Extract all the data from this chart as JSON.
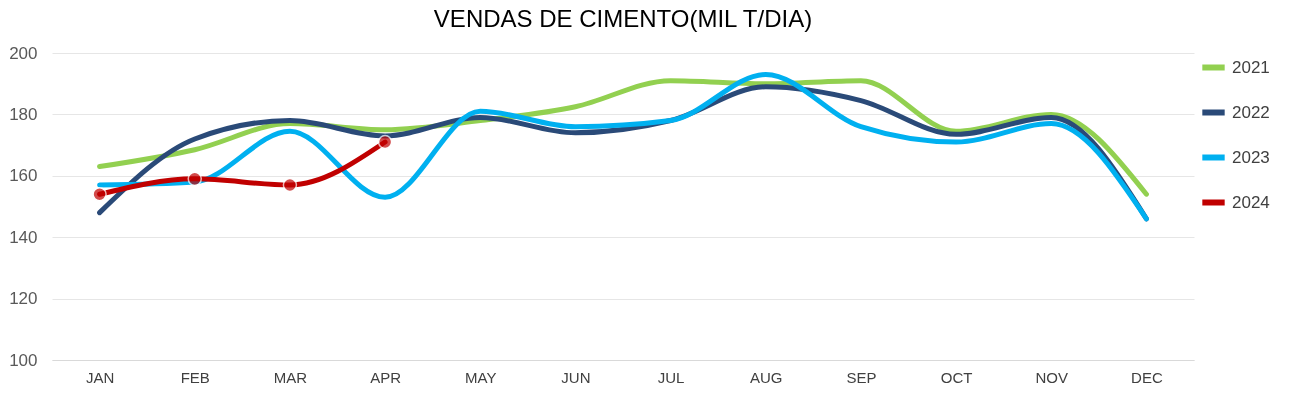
{
  "chart_data": {
    "type": "line",
    "title": "VENDAS DE CIMENTO(MIL T/DIA)",
    "categories": [
      "JAN",
      "FEB",
      "MAR",
      "APR",
      "MAY",
      "JUN",
      "JUL",
      "AUG",
      "SEP",
      "OCT",
      "NOV",
      "DEC"
    ],
    "series": [
      {
        "name": "2021",
        "color": "#92d050",
        "values": [
          163,
          168.5,
          177,
          175,
          178,
          182.5,
          191,
          190,
          191,
          174.5,
          180,
          154
        ]
      },
      {
        "name": "2022",
        "color": "#2a4a78",
        "values": [
          148,
          172,
          178,
          173,
          179,
          174,
          178,
          189,
          184.5,
          173.5,
          179,
          146
        ]
      },
      {
        "name": "2023",
        "color": "#00b0f0",
        "values": [
          157,
          158,
          174.5,
          153,
          181,
          176,
          178,
          193,
          176,
          171,
          177,
          146
        ]
      },
      {
        "name": "2024",
        "color": "#c00000",
        "marker": "circle",
        "values": [
          154,
          159,
          157,
          171,
          null,
          null,
          null,
          null,
          null,
          null,
          null,
          null
        ]
      }
    ],
    "ylim": [
      100,
      200
    ],
    "yticks": [
      100,
      120,
      140,
      160,
      180,
      200
    ],
    "grid": "y",
    "legend": "right"
  }
}
